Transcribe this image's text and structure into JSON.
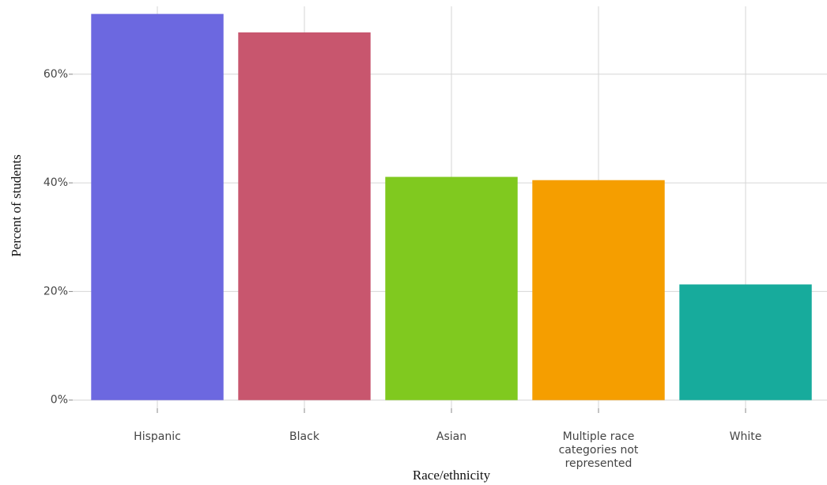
{
  "chart_data": {
    "type": "bar",
    "categories": [
      "Hispanic",
      "Black",
      "Asian",
      "Multiple race categories not represented",
      "White"
    ],
    "values": [
      71.1,
      67.7,
      41.1,
      40.5,
      21.3
    ],
    "colors": [
      "#6c68e0",
      "#c8566e",
      "#80c91f",
      "#f59e00",
      "#17ab9c"
    ],
    "x_label": "Race/ethnicity",
    "y_label": "Percent of students",
    "ylim": [
      -1.5,
      72.5
    ],
    "yticks": [
      {
        "value": 0,
        "label": "0%"
      },
      {
        "value": 20,
        "label": "20%"
      },
      {
        "value": 40,
        "label": "40%"
      },
      {
        "value": 60,
        "label": "60%"
      }
    ],
    "grid": true
  }
}
